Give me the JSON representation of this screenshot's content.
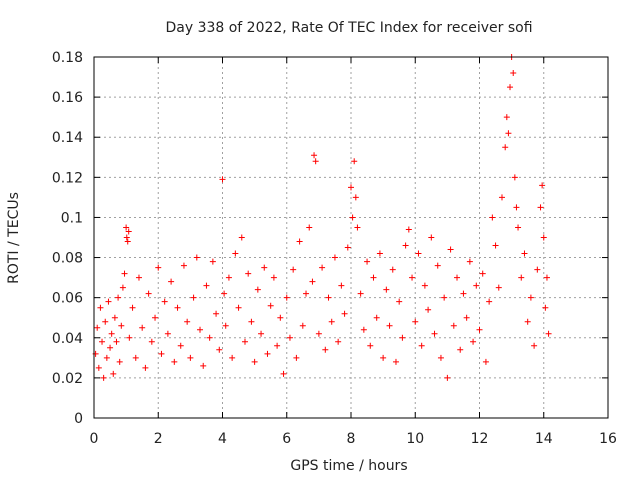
{
  "chart_data": {
    "type": "scatter",
    "title": "Day 338 of 2022, Rate Of TEC Index for receiver sofi",
    "xlabel": "GPS time / hours",
    "ylabel": "ROTI / TECUs",
    "xlim": [
      0,
      16
    ],
    "ylim": [
      0,
      0.18
    ],
    "x_ticks": [
      0,
      2,
      4,
      6,
      8,
      10,
      12,
      14,
      16
    ],
    "y_ticks": [
      0,
      0.02,
      0.04,
      0.06,
      0.08,
      0.1,
      0.12,
      0.14,
      0.16,
      0.18
    ],
    "x_tick_labels": [
      "0",
      "2",
      "4",
      "6",
      "8",
      "10",
      "12",
      "14",
      "16"
    ],
    "y_tick_labels": [
      "0",
      "0.02",
      "0.04",
      "0.06",
      "0.08",
      "0.1",
      "0.12",
      "0.14",
      "0.16",
      "0.18"
    ],
    "grid": true,
    "marker": "+",
    "colors": {
      "points": "#ff0000",
      "axes": "#000000",
      "grid": "#a0a0a0"
    },
    "series": [
      {
        "name": "ROTI",
        "points": [
          [
            0.05,
            0.032
          ],
          [
            0.1,
            0.045
          ],
          [
            0.15,
            0.025
          ],
          [
            0.2,
            0.055
          ],
          [
            0.25,
            0.038
          ],
          [
            0.3,
            0.02
          ],
          [
            0.35,
            0.048
          ],
          [
            0.4,
            0.03
          ],
          [
            0.45,
            0.058
          ],
          [
            0.5,
            0.035
          ],
          [
            0.55,
            0.042
          ],
          [
            0.6,
            0.022
          ],
          [
            0.65,
            0.05
          ],
          [
            0.7,
            0.038
          ],
          [
            0.75,
            0.06
          ],
          [
            0.8,
            0.028
          ],
          [
            0.85,
            0.046
          ],
          [
            0.9,
            0.065
          ],
          [
            0.95,
            0.072
          ],
          [
            1.0,
            0.095
          ],
          [
            1.02,
            0.09
          ],
          [
            1.05,
            0.088
          ],
          [
            1.08,
            0.093
          ],
          [
            1.1,
            0.04
          ],
          [
            1.2,
            0.055
          ],
          [
            1.3,
            0.03
          ],
          [
            1.4,
            0.07
          ],
          [
            1.5,
            0.045
          ],
          [
            1.6,
            0.025
          ],
          [
            1.7,
            0.062
          ],
          [
            1.8,
            0.038
          ],
          [
            1.9,
            0.05
          ],
          [
            2.0,
            0.075
          ],
          [
            2.1,
            0.032
          ],
          [
            2.2,
            0.058
          ],
          [
            2.3,
            0.042
          ],
          [
            2.4,
            0.068
          ],
          [
            2.5,
            0.028
          ],
          [
            2.6,
            0.055
          ],
          [
            2.7,
            0.036
          ],
          [
            2.8,
            0.076
          ],
          [
            2.9,
            0.048
          ],
          [
            3.0,
            0.03
          ],
          [
            3.1,
            0.06
          ],
          [
            3.2,
            0.08
          ],
          [
            3.3,
            0.044
          ],
          [
            3.4,
            0.026
          ],
          [
            3.5,
            0.066
          ],
          [
            3.6,
            0.04
          ],
          [
            3.7,
            0.078
          ],
          [
            3.8,
            0.052
          ],
          [
            3.9,
            0.034
          ],
          [
            4.0,
            0.119
          ],
          [
            4.05,
            0.062
          ],
          [
            4.1,
            0.046
          ],
          [
            4.2,
            0.07
          ],
          [
            4.3,
            0.03
          ],
          [
            4.4,
            0.082
          ],
          [
            4.5,
            0.055
          ],
          [
            4.6,
            0.09
          ],
          [
            4.7,
            0.038
          ],
          [
            4.8,
            0.072
          ],
          [
            4.9,
            0.048
          ],
          [
            5.0,
            0.028
          ],
          [
            5.1,
            0.064
          ],
          [
            5.2,
            0.042
          ],
          [
            5.3,
            0.075
          ],
          [
            5.4,
            0.032
          ],
          [
            5.5,
            0.056
          ],
          [
            5.6,
            0.07
          ],
          [
            5.7,
            0.036
          ],
          [
            5.8,
            0.05
          ],
          [
            5.9,
            0.022
          ],
          [
            6.0,
            0.06
          ],
          [
            6.1,
            0.04
          ],
          [
            6.2,
            0.074
          ],
          [
            6.3,
            0.03
          ],
          [
            6.4,
            0.088
          ],
          [
            6.5,
            0.046
          ],
          [
            6.6,
            0.062
          ],
          [
            6.7,
            0.095
          ],
          [
            6.8,
            0.068
          ],
          [
            6.85,
            0.131
          ],
          [
            6.9,
            0.128
          ],
          [
            7.0,
            0.042
          ],
          [
            7.1,
            0.075
          ],
          [
            7.2,
            0.034
          ],
          [
            7.3,
            0.06
          ],
          [
            7.4,
            0.048
          ],
          [
            7.5,
            0.08
          ],
          [
            7.6,
            0.038
          ],
          [
            7.7,
            0.066
          ],
          [
            7.8,
            0.052
          ],
          [
            7.9,
            0.085
          ],
          [
            8.0,
            0.115
          ],
          [
            8.05,
            0.1
          ],
          [
            8.1,
            0.128
          ],
          [
            8.15,
            0.11
          ],
          [
            8.2,
            0.095
          ],
          [
            8.3,
            0.062
          ],
          [
            8.4,
            0.044
          ],
          [
            8.5,
            0.078
          ],
          [
            8.6,
            0.036
          ],
          [
            8.7,
            0.07
          ],
          [
            8.8,
            0.05
          ],
          [
            8.9,
            0.082
          ],
          [
            9.0,
            0.03
          ],
          [
            9.1,
            0.064
          ],
          [
            9.2,
            0.046
          ],
          [
            9.3,
            0.074
          ],
          [
            9.4,
            0.028
          ],
          [
            9.5,
            0.058
          ],
          [
            9.6,
            0.04
          ],
          [
            9.7,
            0.086
          ],
          [
            9.8,
            0.094
          ],
          [
            9.9,
            0.07
          ],
          [
            10.0,
            0.048
          ],
          [
            10.1,
            0.082
          ],
          [
            10.2,
            0.036
          ],
          [
            10.3,
            0.066
          ],
          [
            10.4,
            0.054
          ],
          [
            10.5,
            0.09
          ],
          [
            10.6,
            0.042
          ],
          [
            10.7,
            0.076
          ],
          [
            10.8,
            0.03
          ],
          [
            10.9,
            0.06
          ],
          [
            11.0,
            0.02
          ],
          [
            11.1,
            0.084
          ],
          [
            11.2,
            0.046
          ],
          [
            11.3,
            0.07
          ],
          [
            11.4,
            0.034
          ],
          [
            11.5,
            0.062
          ],
          [
            11.6,
            0.05
          ],
          [
            11.7,
            0.078
          ],
          [
            11.8,
            0.038
          ],
          [
            11.9,
            0.066
          ],
          [
            12.0,
            0.044
          ],
          [
            12.1,
            0.072
          ],
          [
            12.2,
            0.028
          ],
          [
            12.3,
            0.058
          ],
          [
            12.4,
            0.1
          ],
          [
            12.5,
            0.086
          ],
          [
            12.6,
            0.065
          ],
          [
            12.7,
            0.11
          ],
          [
            12.8,
            0.135
          ],
          [
            12.85,
            0.15
          ],
          [
            12.9,
            0.142
          ],
          [
            12.95,
            0.165
          ],
          [
            13.0,
            0.18
          ],
          [
            13.05,
            0.172
          ],
          [
            13.1,
            0.12
          ],
          [
            13.15,
            0.105
          ],
          [
            13.2,
            0.095
          ],
          [
            13.3,
            0.07
          ],
          [
            13.4,
            0.082
          ],
          [
            13.5,
            0.048
          ],
          [
            13.6,
            0.06
          ],
          [
            13.7,
            0.036
          ],
          [
            13.8,
            0.074
          ],
          [
            13.9,
            0.105
          ],
          [
            13.95,
            0.116
          ],
          [
            14.0,
            0.09
          ],
          [
            14.05,
            0.055
          ],
          [
            14.1,
            0.07
          ],
          [
            14.15,
            0.042
          ]
        ]
      }
    ]
  }
}
